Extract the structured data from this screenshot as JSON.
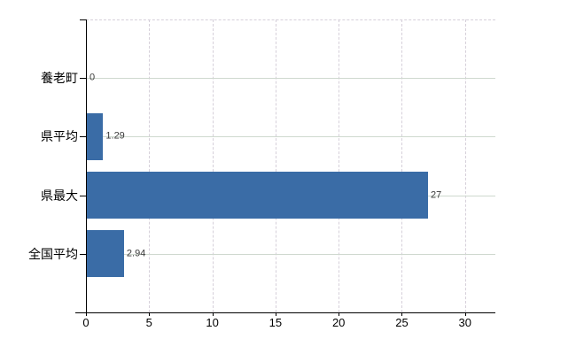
{
  "chart_data": {
    "type": "bar",
    "orientation": "horizontal",
    "title": "",
    "xlabel": "",
    "ylabel": "",
    "legend": false,
    "categories": [
      "養老町",
      "県平均",
      "県最大",
      "全国平均"
    ],
    "values": [
      0,
      1.29,
      27,
      2.94
    ],
    "value_labels": [
      "0",
      "1.29",
      "27",
      "2.94"
    ],
    "x_axis": {
      "min": 0,
      "max": 32.4,
      "ticks": [
        0,
        5,
        10,
        15,
        20,
        25,
        30
      ],
      "tick_labels": [
        "0",
        "5",
        "10",
        "15",
        "20",
        "25",
        "30"
      ]
    },
    "grid": {
      "vertical_style": "dashed",
      "horizontal_style": "solid",
      "top_border_style": "dashed"
    },
    "colors": {
      "bar": "#3a6ca6",
      "axis": "#000000",
      "vertical_gridline": "#d6d0da",
      "horizontal_gridline": "#cfd9cf",
      "value_label": "#3a3a3a",
      "category_label": "#000000",
      "tick_label": "#000000",
      "background": "#ffffff"
    }
  }
}
